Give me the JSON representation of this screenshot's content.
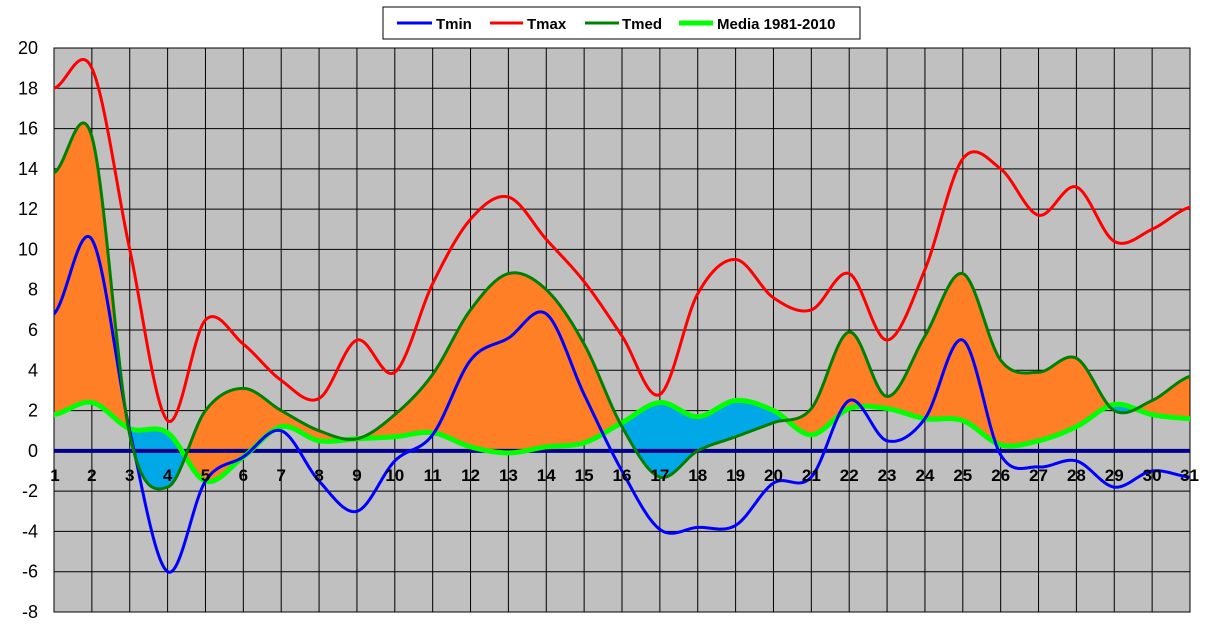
{
  "chart_data": {
    "type": "line",
    "title": "",
    "xlabel": "",
    "ylabel": "",
    "x": [
      1,
      2,
      3,
      4,
      5,
      6,
      7,
      8,
      9,
      10,
      11,
      12,
      13,
      14,
      15,
      16,
      17,
      18,
      19,
      20,
      21,
      22,
      23,
      24,
      25,
      26,
      27,
      28,
      29,
      30,
      31
    ],
    "ylim": [
      -8,
      20
    ],
    "yticks": [
      -8,
      -6,
      -4,
      -2,
      0,
      2,
      4,
      6,
      8,
      10,
      12,
      14,
      16,
      18,
      20
    ],
    "grid": true,
    "legend_position": "top-center",
    "series": [
      {
        "name": "Tmin",
        "color": "#0000ff",
        "values": [
          6.8,
          10.5,
          1.0,
          -6.0,
          -1.5,
          -0.3,
          1.0,
          -1.5,
          -3.0,
          -0.5,
          0.8,
          4.5,
          5.6,
          6.8,
          2.8,
          -1.0,
          -3.9,
          -3.8,
          -3.7,
          -1.6,
          -1.3,
          2.5,
          0.5,
          1.6,
          5.5,
          -0.2,
          -0.8,
          -0.5,
          -1.8,
          -1.0,
          -1.3
        ]
      },
      {
        "name": "Tmax",
        "color": "#ff0000",
        "values": [
          18.0,
          19.0,
          10.0,
          1.5,
          6.5,
          5.3,
          3.5,
          2.6,
          5.5,
          3.9,
          8.3,
          11.5,
          12.6,
          10.5,
          8.4,
          5.7,
          2.8,
          7.8,
          9.5,
          7.6,
          7.0,
          8.8,
          5.5,
          9.0,
          14.5,
          14.0,
          11.7,
          13.1,
          10.4,
          11.0,
          12.1
        ]
      },
      {
        "name": "Tmed",
        "color": "#008000",
        "values": [
          13.8,
          15.6,
          0.8,
          -1.8,
          2.0,
          3.1,
          2.0,
          1.0,
          0.6,
          1.8,
          3.8,
          7.0,
          8.8,
          8.0,
          5.3,
          1.2,
          -1.3,
          0.0,
          0.7,
          1.4,
          2.1,
          5.9,
          2.7,
          5.7,
          8.8,
          4.5,
          3.9,
          4.6,
          2.0,
          2.5,
          3.7
        ]
      },
      {
        "name": "Media 1981-2010",
        "color": "#00ff00",
        "values": [
          1.8,
          2.4,
          1.1,
          0.9,
          -1.5,
          -0.3,
          1.2,
          0.5,
          0.6,
          0.7,
          0.9,
          0.2,
          -0.1,
          0.2,
          0.4,
          1.4,
          2.4,
          1.7,
          2.5,
          2.0,
          0.8,
          2.1,
          2.1,
          1.6,
          1.5,
          0.3,
          0.5,
          1.2,
          2.3,
          1.8,
          1.6
        ]
      }
    ],
    "fill_above_color": "#ff7f27",
    "fill_below_color": "#00a8e8",
    "plot_background": "#c0c0c0",
    "zero_line_color": "#00008b"
  }
}
